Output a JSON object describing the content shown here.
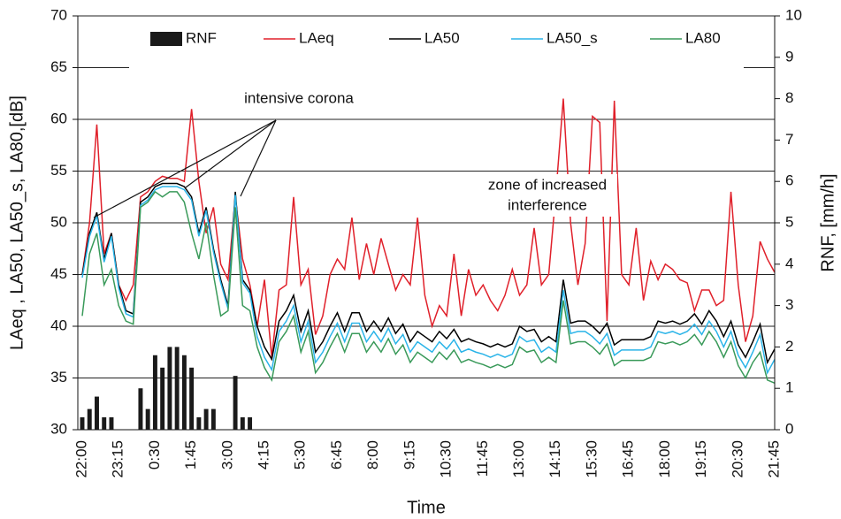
{
  "chart_data": {
    "type": "line",
    "xlabel": "Time",
    "ylabel": "LAeq , LA50, LA50_s, LA80,[dB]",
    "y2label": "RNF, [mm/h]",
    "ylim": [
      30,
      70
    ],
    "yticks": [
      30,
      35,
      40,
      45,
      50,
      55,
      60,
      65,
      70
    ],
    "y2lim": [
      0,
      10
    ],
    "y2ticks": [
      0,
      1,
      2,
      3,
      4,
      5,
      6,
      7,
      8,
      9,
      10
    ],
    "grid": true,
    "legend": "top",
    "annotations": [
      "intensive corona",
      "zone of increased",
      "interference"
    ],
    "categories": [
      "22:00",
      null,
      null,
      null,
      null,
      "23:15",
      null,
      null,
      null,
      null,
      "0:30",
      null,
      null,
      null,
      null,
      "1:45",
      null,
      null,
      null,
      null,
      "3:00",
      null,
      null,
      null,
      null,
      "4:15",
      null,
      null,
      null,
      null,
      "5:30",
      null,
      null,
      null,
      null,
      "6:45",
      null,
      null,
      null,
      null,
      "8:00",
      null,
      null,
      null,
      null,
      "9:15",
      null,
      null,
      null,
      null,
      "10:30",
      null,
      null,
      null,
      null,
      "11:45",
      null,
      null,
      null,
      null,
      "13:00",
      null,
      null,
      null,
      null,
      "14:15",
      null,
      null,
      null,
      null,
      "15:30",
      null,
      null,
      null,
      null,
      "16:45",
      null,
      null,
      null,
      null,
      "18:00",
      null,
      null,
      null,
      null,
      "19:15",
      null,
      null,
      null,
      null,
      "20:30",
      null,
      null,
      null,
      null,
      "21:45"
    ],
    "series": [
      {
        "name": "RNF",
        "type": "bar",
        "axis": "y2",
        "color": "#1a1a1a",
        "values": [
          0.3,
          0.5,
          0.8,
          0.3,
          0.3,
          0,
          0,
          0,
          1.0,
          0.5,
          1.8,
          1.5,
          2.0,
          2.0,
          1.8,
          1.5,
          0.3,
          0.5,
          0.5,
          0,
          0,
          1.3,
          0.3,
          0.3,
          0,
          0,
          0,
          0,
          0,
          0,
          0,
          0,
          0,
          0,
          0,
          0,
          0,
          0,
          0,
          0,
          0,
          0,
          0,
          0,
          0,
          0,
          0,
          0,
          0,
          0,
          0,
          0,
          0,
          0,
          0,
          0,
          0,
          0,
          0,
          0,
          0,
          0,
          0,
          0,
          0,
          0,
          0,
          0,
          0,
          0,
          0,
          0,
          0,
          0,
          0,
          0,
          0,
          0,
          0,
          0,
          0,
          0,
          0,
          0,
          0,
          0,
          0,
          0,
          0,
          0,
          0,
          0,
          0,
          0,
          0,
          0
        ]
      },
      {
        "name": "LAeq",
        "type": "line",
        "color": "#e0202a",
        "values": [
          45,
          50,
          59.5,
          47,
          49,
          44,
          42.5,
          44,
          52.5,
          53,
          54,
          54.5,
          54.3,
          54.3,
          54,
          61,
          54,
          49,
          51.5,
          46,
          44.5,
          52.5,
          46.5,
          44,
          40,
          44.5,
          37,
          43.5,
          44,
          52.5,
          44,
          45.5,
          39.2,
          41,
          45,
          46.5,
          45.5,
          50.5,
          44.5,
          48,
          45,
          48.5,
          46,
          43.5,
          45,
          44,
          50.5,
          43,
          40,
          42,
          41,
          47,
          41,
          45.5,
          43,
          44,
          42.5,
          41.5,
          43,
          45.5,
          43,
          44,
          49.5,
          44,
          45,
          53,
          62,
          50,
          44,
          48,
          60.3,
          59.7,
          40.5,
          61.8,
          45,
          44,
          49.5,
          42.5,
          46.3,
          44.5,
          46,
          45.5,
          44.5,
          44.2,
          41.5,
          43.5,
          43.5,
          42,
          42.5,
          53,
          44,
          38.5,
          41,
          48.2,
          46.5,
          45.2
        ]
      },
      {
        "name": "LA50",
        "type": "line",
        "color": "#000000",
        "values": [
          45,
          49,
          51,
          46.5,
          49,
          44,
          41.5,
          41.2,
          52,
          52.5,
          53.5,
          53.8,
          53.8,
          53.8,
          53.5,
          52.5,
          49,
          51.5,
          47.5,
          44.5,
          42,
          53,
          44.5,
          43.5,
          40,
          38,
          36.8,
          40.5,
          41.5,
          43,
          39.5,
          41.5,
          37.5,
          38.5,
          40,
          41.3,
          39.5,
          41.3,
          41.3,
          39.5,
          40.5,
          39.5,
          40.8,
          39.3,
          40.2,
          38.5,
          39.5,
          39,
          38.5,
          39.5,
          38.8,
          39.7,
          38.5,
          38.8,
          38.5,
          38.3,
          38,
          38.3,
          38,
          38.3,
          40,
          39.5,
          39.7,
          38.5,
          39,
          38.5,
          44.5,
          40.3,
          40.5,
          40.5,
          40,
          39.3,
          40.3,
          38.2,
          38.7,
          38.7,
          38.7,
          38.7,
          39,
          40.5,
          40.3,
          40.5,
          40.2,
          40.5,
          41.2,
          40.2,
          41.5,
          40.5,
          39,
          40.5,
          38.2,
          37,
          38.5,
          40.2,
          36.5,
          37.8
        ]
      },
      {
        "name": "LA50_s",
        "type": "line",
        "color": "#2ab4e8",
        "values": [
          44.7,
          48.7,
          50.7,
          46.2,
          48.7,
          43.7,
          41.2,
          40.9,
          51.7,
          52.2,
          53.2,
          53.5,
          53.5,
          53.5,
          53.2,
          52.2,
          48.7,
          51.2,
          47.2,
          44.2,
          41.7,
          52.7,
          44.2,
          43.2,
          39,
          37,
          35.8,
          39.5,
          40.5,
          42,
          38.5,
          40.5,
          36.5,
          37.5,
          39,
          40.3,
          38.5,
          40.3,
          40.3,
          38.5,
          39.5,
          38.5,
          39.8,
          38.3,
          39.2,
          37.5,
          38.5,
          38,
          37.5,
          38.5,
          37.8,
          38.7,
          37.5,
          37.8,
          37.5,
          37.3,
          37,
          37.3,
          37,
          37.3,
          39,
          38.5,
          38.7,
          37.5,
          38,
          37.5,
          43.5,
          39.3,
          39.5,
          39.5,
          39,
          38.3,
          39.3,
          37.2,
          37.7,
          37.7,
          37.7,
          37.7,
          38,
          39.5,
          39.3,
          39.5,
          39.2,
          39.5,
          40.2,
          39.2,
          40.5,
          39.5,
          38,
          39.5,
          37.2,
          36,
          37.5,
          39.2,
          35.5,
          36.8
        ]
      },
      {
        "name": "LA80",
        "type": "line",
        "color": "#3a9a5a",
        "values": [
          41,
          47,
          49,
          44,
          45.5,
          42,
          40.5,
          40.2,
          51.5,
          52,
          53,
          52.5,
          53,
          53,
          52,
          49,
          46.5,
          50,
          45,
          41,
          41.5,
          51.5,
          42,
          41.5,
          38,
          36,
          34.8,
          38.5,
          39.5,
          41,
          37.5,
          39.5,
          35.5,
          36.5,
          38,
          39.3,
          37.5,
          39.3,
          39.3,
          37.5,
          38.5,
          37.5,
          38.8,
          37.3,
          38.2,
          36.5,
          37.5,
          37,
          36.5,
          37.5,
          36.8,
          37.7,
          36.5,
          36.8,
          36.5,
          36.3,
          36,
          36.3,
          36,
          36.3,
          38,
          37.5,
          37.7,
          36.5,
          37,
          36.5,
          42.5,
          38.3,
          38.5,
          38.5,
          38,
          37.3,
          38.3,
          36.2,
          36.7,
          36.7,
          36.7,
          36.7,
          37,
          38.5,
          38.3,
          38.5,
          38.2,
          38.5,
          39.2,
          38.2,
          39.5,
          38.5,
          37,
          38.5,
          36.2,
          35,
          36.5,
          37.5,
          34.8,
          34.5
        ]
      }
    ]
  }
}
